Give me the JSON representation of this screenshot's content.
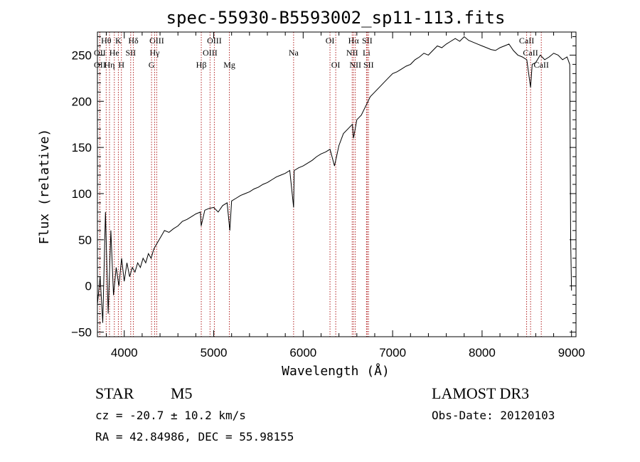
{
  "chart_data": {
    "type": "line",
    "title": "spec-55930-B5593002_sp11-113.fits",
    "xlabel": "Wavelength (Å)",
    "ylabel": "Flux (relative)",
    "xlim": [
      3700,
      9050
    ],
    "ylim": [
      -55,
      275
    ],
    "xticks": [
      4000,
      5000,
      6000,
      7000,
      8000,
      9000
    ],
    "yticks": [
      -50,
      0,
      50,
      100,
      150,
      200,
      250
    ],
    "series": [
      {
        "name": "flux",
        "x": [
          3700,
          3730,
          3760,
          3790,
          3820,
          3850,
          3880,
          3910,
          3940,
          3970,
          4000,
          4030,
          4060,
          4090,
          4120,
          4150,
          4180,
          4210,
          4240,
          4270,
          4300,
          4330,
          4360,
          4390,
          4420,
          4450,
          4500,
          4550,
          4600,
          4650,
          4700,
          4750,
          4800,
          4850,
          4860,
          4900,
          4950,
          5000,
          5050,
          5100,
          5150,
          5180,
          5200,
          5250,
          5300,
          5350,
          5400,
          5450,
          5500,
          5550,
          5600,
          5650,
          5700,
          5750,
          5800,
          5850,
          5893,
          5900,
          5950,
          6000,
          6050,
          6100,
          6150,
          6200,
          6250,
          6300,
          6350,
          6400,
          6450,
          6500,
          6550,
          6563,
          6600,
          6650,
          6700,
          6750,
          6800,
          6850,
          6900,
          6950,
          7000,
          7050,
          7100,
          7150,
          7200,
          7250,
          7300,
          7350,
          7400,
          7450,
          7500,
          7550,
          7600,
          7650,
          7700,
          7750,
          7800,
          7850,
          7900,
          7950,
          8000,
          8050,
          8100,
          8150,
          8200,
          8250,
          8300,
          8350,
          8400,
          8450,
          8500,
          8542,
          8560,
          8600,
          8650,
          8700,
          8750,
          8800,
          8850,
          8900,
          8950,
          8980,
          8990,
          9000
        ],
        "values": [
          -20,
          10,
          -40,
          80,
          -30,
          60,
          -10,
          20,
          0,
          30,
          5,
          25,
          10,
          20,
          15,
          25,
          20,
          30,
          25,
          35,
          30,
          40,
          45,
          50,
          55,
          60,
          58,
          62,
          65,
          70,
          72,
          75,
          78,
          80,
          65,
          82,
          84,
          85,
          80,
          87,
          90,
          60,
          92,
          95,
          98,
          100,
          102,
          105,
          107,
          110,
          112,
          115,
          118,
          120,
          122,
          125,
          85,
          125,
          128,
          130,
          133,
          136,
          140,
          143,
          145,
          148,
          130,
          152,
          165,
          170,
          175,
          160,
          180,
          185,
          195,
          205,
          210,
          215,
          220,
          225,
          230,
          232,
          235,
          238,
          240,
          245,
          248,
          252,
          250,
          255,
          260,
          258,
          262,
          265,
          268,
          265,
          270,
          266,
          264,
          262,
          260,
          258,
          256,
          255,
          258,
          260,
          262,
          255,
          250,
          248,
          245,
          215,
          240,
          242,
          250,
          245,
          248,
          252,
          250,
          245,
          248,
          240,
          50,
          -5
        ]
      }
    ],
    "spectral_lines": [
      {
        "label": "Hθ",
        "wavelength": 3798,
        "row": 0
      },
      {
        "label": "OII",
        "wavelength": 3727,
        "row": 1
      },
      {
        "label": "OII",
        "wavelength": 3727,
        "row": 2
      },
      {
        "label": "K",
        "wavelength": 3934,
        "row": 0
      },
      {
        "label": "He",
        "wavelength": 3889,
        "row": 1
      },
      {
        "label": "Hη",
        "wavelength": 3835,
        "row": 2
      },
      {
        "label": "Hδ",
        "wavelength": 4102,
        "row": 0
      },
      {
        "label": "SII",
        "wavelength": 4072,
        "row": 1
      },
      {
        "label": "H",
        "wavelength": 3968,
        "row": 2
      },
      {
        "label": "OIII",
        "wavelength": 4363,
        "row": 0
      },
      {
        "label": "Hγ",
        "wavelength": 4340,
        "row": 1
      },
      {
        "label": "G",
        "wavelength": 4305,
        "row": 2
      },
      {
        "label": "OIII",
        "wavelength": 5007,
        "row": 0
      },
      {
        "label": "OIII",
        "wavelength": 4959,
        "row": 1
      },
      {
        "label": "Hβ",
        "wavelength": 4861,
        "row": 2
      },
      {
        "label": "Mg",
        "wavelength": 5175,
        "row": 2
      },
      {
        "label": "Na",
        "wavelength": 5893,
        "row": 1
      },
      {
        "label": "OI",
        "wavelength": 6300,
        "row": 0
      },
      {
        "label": "OI",
        "wavelength": 6364,
        "row": 2
      },
      {
        "label": "Hα",
        "wavelength": 6563,
        "row": 0
      },
      {
        "label": "NII",
        "wavelength": 6548,
        "row": 1
      },
      {
        "label": "NII",
        "wavelength": 6583,
        "row": 2
      },
      {
        "label": "SII",
        "wavelength": 6716,
        "row": 0
      },
      {
        "label": "Li",
        "wavelength": 6708,
        "row": 1
      },
      {
        "label": "SII",
        "wavelength": 6731,
        "row": 2
      },
      {
        "label": "CaII",
        "wavelength": 8498,
        "row": 0
      },
      {
        "label": "CaII",
        "wavelength": 8542,
        "row": 1
      },
      {
        "label": "CaII",
        "wavelength": 8662,
        "row": 2
      }
    ]
  },
  "info": {
    "object_type": "STAR",
    "subclass": "M5",
    "survey": "LAMOST DR3",
    "cz": "cz = -20.7 ± 10.2 km/s",
    "obs_date": "Obs-Date: 20120103",
    "coords": "RA =  42.84986, DEC =  55.98155"
  }
}
